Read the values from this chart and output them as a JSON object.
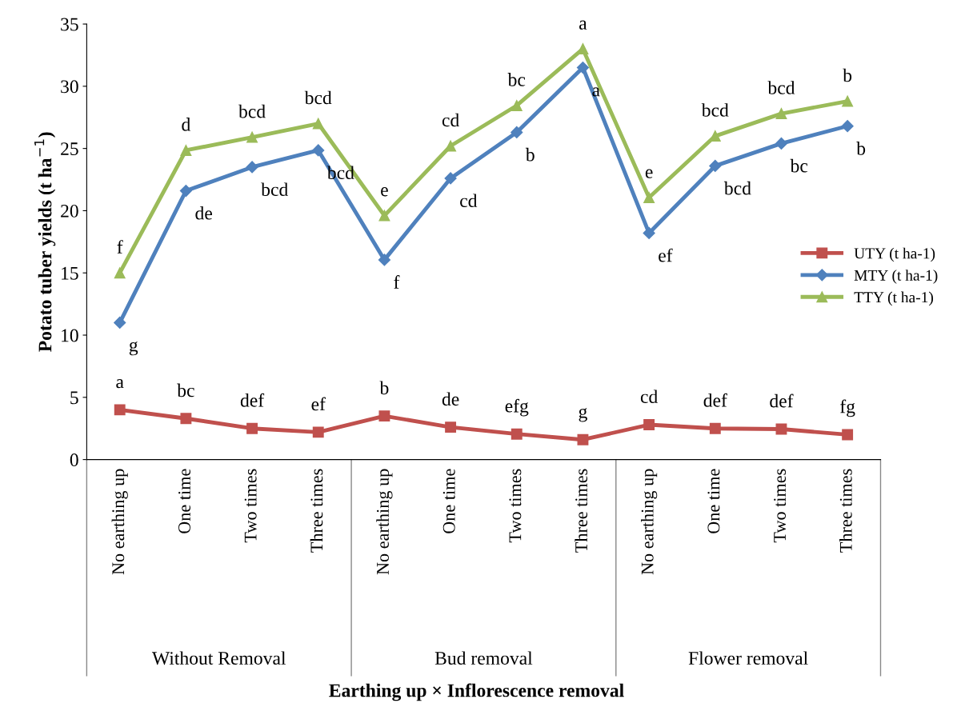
{
  "chart_data": {
    "type": "line",
    "ylabel": "Potato tuber yields (t ha$^{−1}$)",
    "categories": [
      "No earthing up",
      "One time",
      "Two times",
      "Three times",
      "No earthing up",
      "One time",
      "Two times",
      "Three times",
      "No earthing up",
      "One time",
      "Two times",
      "Three times"
    ],
    "annotations": [
      "Earthing up × Inflorescence removal",
      "Without Removal",
      "Bud removal",
      "Flower removal"
    ],
    "series": [
      {
        "name": "UTY (t ha-1)",
        "color": "#c0504d",
        "marker": "square",
        "values": [
          4.0,
          3.3,
          2.5,
          2.2,
          3.5,
          2.6,
          2.05,
          1.6,
          2.8,
          2.5,
          2.45,
          2.0
        ],
        "value_labels": [
          "a",
          "bc",
          "def",
          "ef",
          "b",
          "de",
          "efg",
          "g",
          "cd",
          "def",
          "def",
          "fg"
        ]
      },
      {
        "name": "MTY (t ha-1)",
        "color": "#4f81bd",
        "marker": "diamond",
        "values": [
          11.0,
          21.6,
          23.5,
          24.85,
          16.05,
          22.6,
          26.3,
          31.5,
          18.2,
          23.6,
          25.4,
          26.8
        ],
        "value_labels": [
          "g",
          "de",
          "bcd",
          "bcd",
          "f",
          "cd",
          "b",
          "a",
          "ef",
          "bcd",
          "bc",
          "b"
        ]
      },
      {
        "name": "TTY (t ha-1)",
        "color": "#9bbb59",
        "marker": "triangle",
        "values": [
          15.0,
          24.85,
          25.9,
          27.0,
          19.6,
          25.2,
          28.45,
          33.0,
          21.05,
          26.0,
          27.8,
          28.8
        ],
        "value_labels": [
          "f",
          "d",
          "bcd",
          "bcd",
          "e",
          "cd",
          "bc",
          "a",
          "e",
          "bcd",
          "bcd",
          "b"
        ]
      }
    ],
    "ylim": [
      0,
      35
    ],
    "yticks": [
      0,
      5,
      10,
      15,
      20,
      25,
      30,
      35
    ],
    "grid": false,
    "legend": "right",
    "line_style": "solid"
  }
}
